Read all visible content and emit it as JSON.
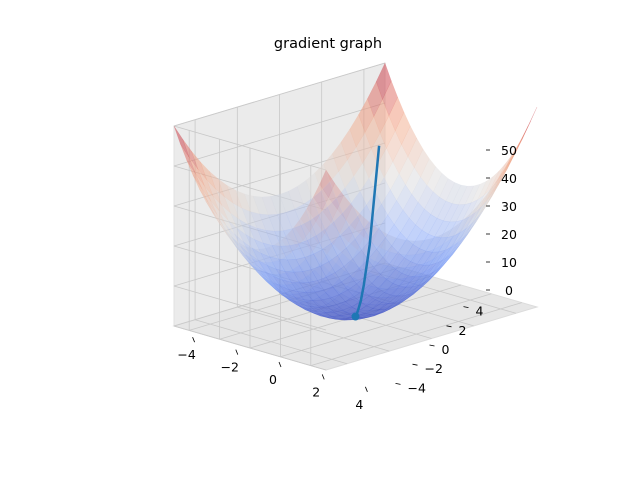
{
  "chart_data": {
    "type": "surface3d",
    "title": "gradient graph",
    "xlabel": "",
    "ylabel": "",
    "zlabel": "",
    "function": "z = x^2 + y^2",
    "xlim": [
      -5,
      5
    ],
    "ylim": [
      -5,
      5
    ],
    "zlim": [
      0,
      50
    ],
    "x_ticks": [
      "−4",
      "−2",
      "0",
      "2",
      "4"
    ],
    "y_ticks": [
      "−4",
      "−2",
      "0",
      "2",
      "4"
    ],
    "z_ticks": [
      "0",
      "10",
      "20",
      "30",
      "40",
      "50"
    ],
    "colormap": "coolwarm",
    "surface_alpha": 0.5,
    "grid": true,
    "gradient_path": {
      "color": "#1f77b4",
      "points": [
        {
          "x": 4.0,
          "y": 4.0,
          "z": 32.0
        },
        {
          "x": 2.4,
          "y": 2.4,
          "z": 11.5
        },
        {
          "x": 1.4,
          "y": 1.4,
          "z": 4.1
        },
        {
          "x": 0.9,
          "y": 0.9,
          "z": 1.5
        },
        {
          "x": 0.5,
          "y": 0.5,
          "z": 0.5
        },
        {
          "x": 0.3,
          "y": 0.3,
          "z": 0.2
        },
        {
          "x": 0.0,
          "y": 0.0,
          "z": 0.0
        }
      ],
      "end_marker": {
        "x": 0.0,
        "y": 0.0,
        "z": 0.0
      }
    }
  }
}
